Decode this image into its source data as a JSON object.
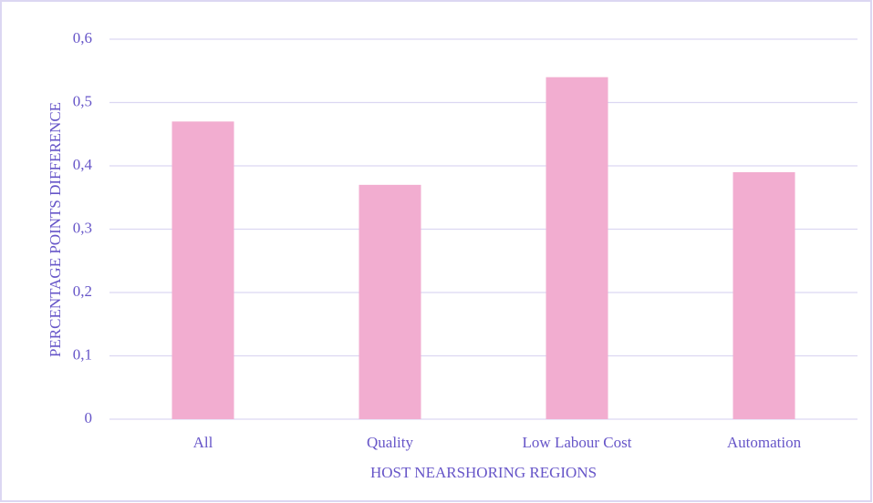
{
  "chart_data": {
    "type": "bar",
    "x_label": "HOST NEARSHORING REGIONS",
    "y_label": "PERCENTAGE POINTS DIFFERENCE",
    "categories": [
      "All",
      "Quality",
      "Low Labour Cost",
      "Automation"
    ],
    "values": [
      0.47,
      0.37,
      0.54,
      0.39
    ],
    "color": "#f2add0",
    "ylim": [
      0,
      0.6
    ],
    "yticks": [
      0,
      {
        "value": 0.1,
        "label": "0,1"
      },
      {
        "value": 0.2,
        "label": "0,2"
      },
      {
        "value": 0.3,
        "label": "0,3"
      },
      {
        "value": 0.4,
        "label": "0,4"
      },
      {
        "value": 0.5,
        "label": "0,5"
      },
      {
        "value": 0.6,
        "label": "0,6"
      }
    ],
    "grid": true
  }
}
